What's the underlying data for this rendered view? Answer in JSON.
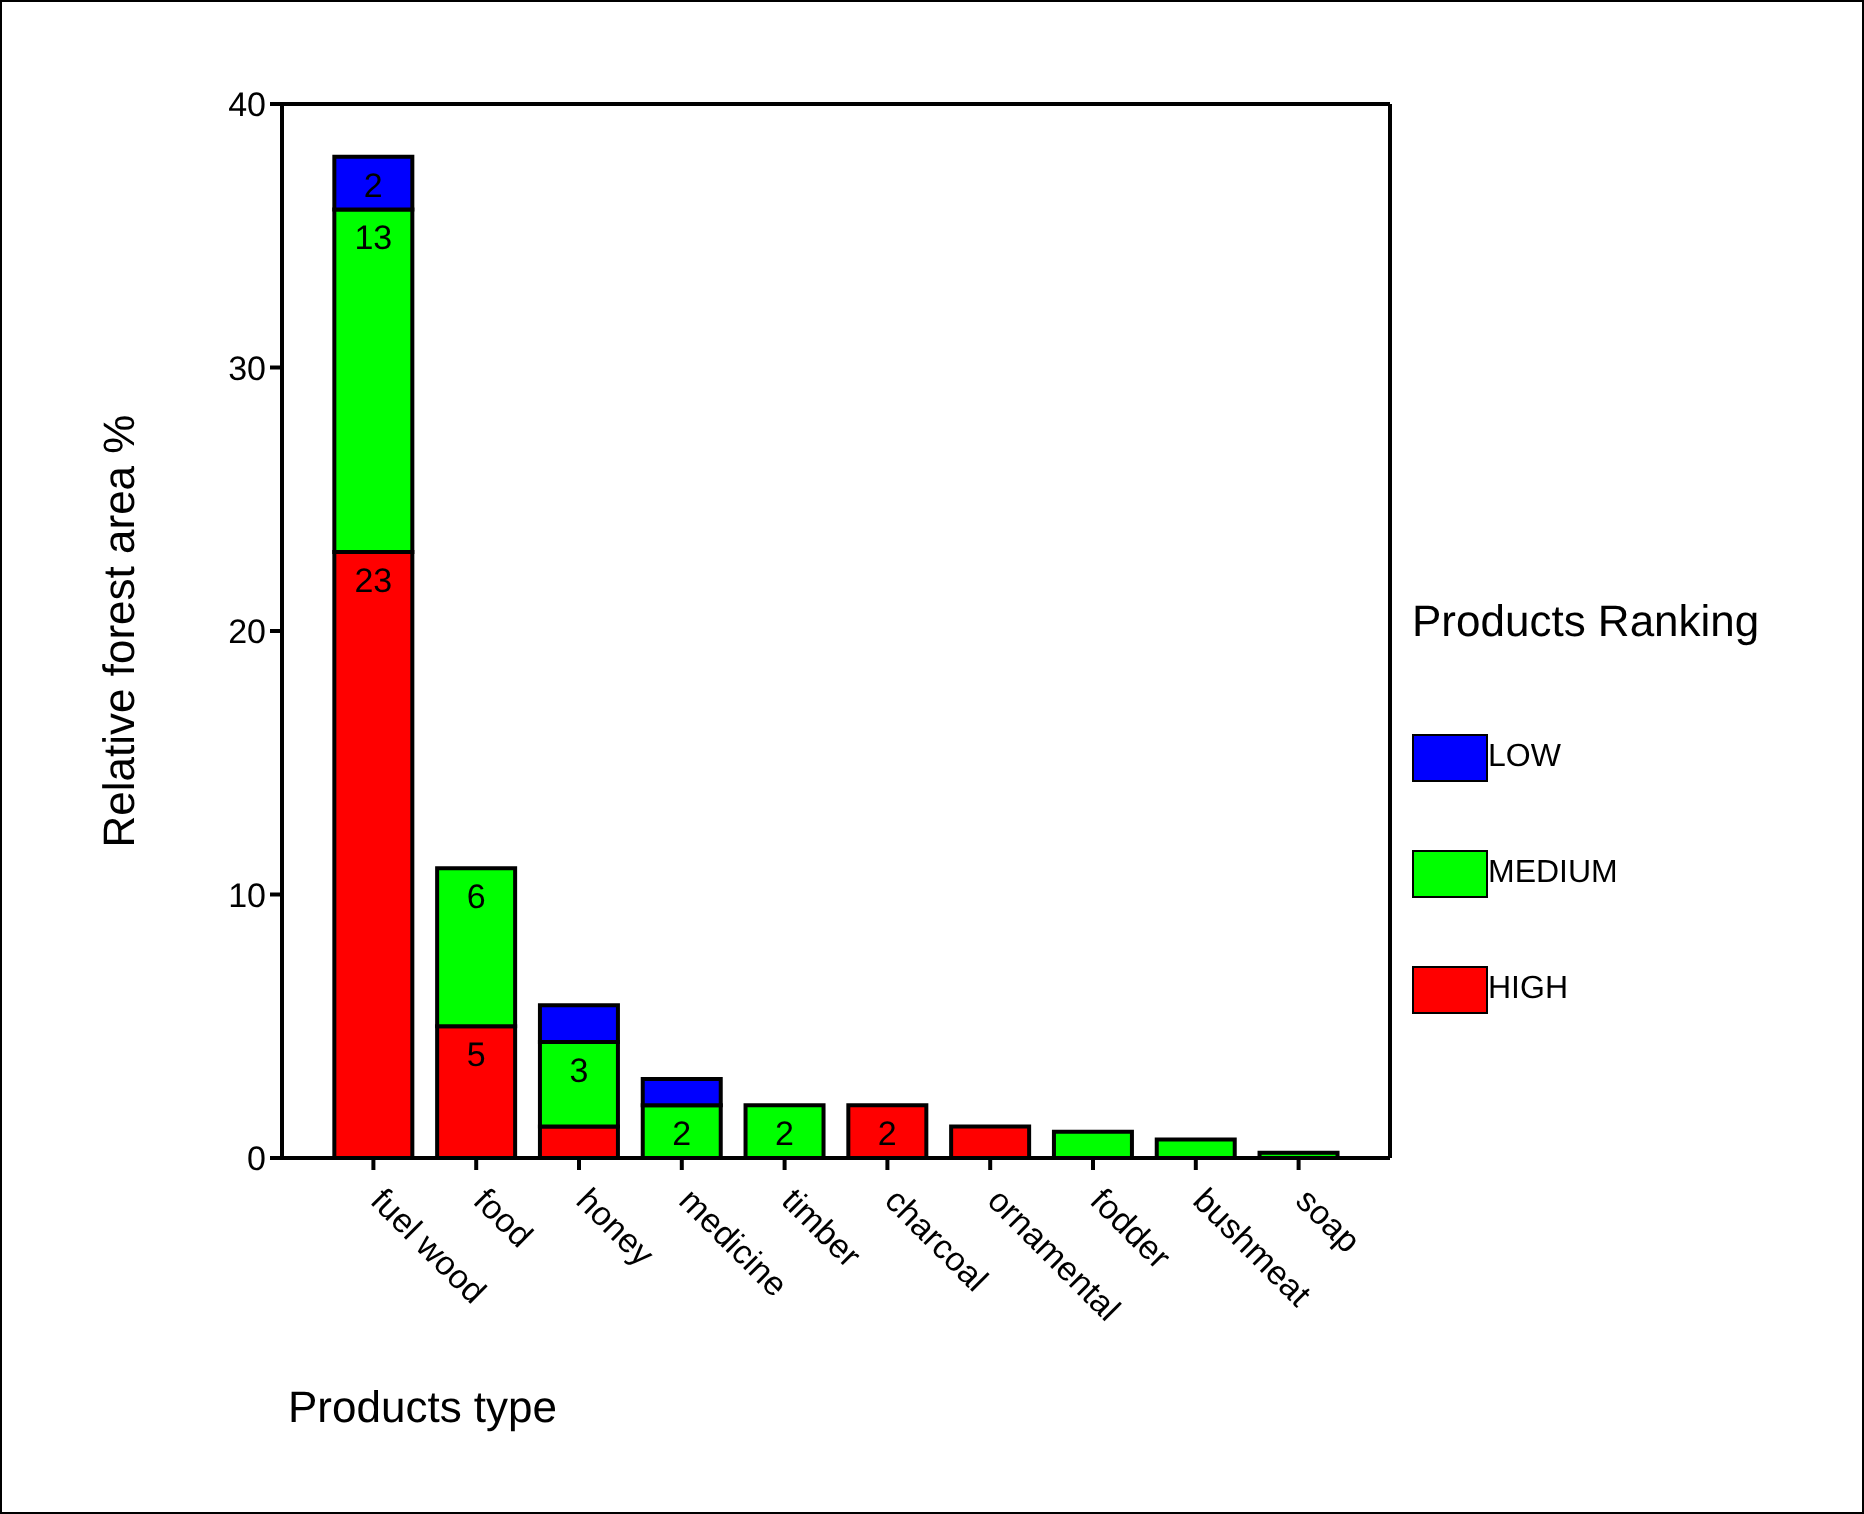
{
  "chart_data": {
    "type": "bar",
    "stacked": true,
    "xlabel": "Products type",
    "ylabel": "Relative forest area   %",
    "legend_title": "Products Ranking",
    "legend": "right",
    "categories": [
      "fuel wood",
      "food",
      "honey",
      "medicine",
      "timber",
      "charcoal",
      "ornamental",
      "fodder",
      "bushmeat",
      "soap"
    ],
    "ylim": [
      0,
      40
    ],
    "yticks": [
      0,
      10,
      20,
      30,
      40
    ],
    "series": [
      {
        "name": "HIGH",
        "color": "#ff0000",
        "values": [
          23,
          5,
          1.2,
          null,
          null,
          2,
          1.2,
          null,
          null,
          null
        ],
        "value_labels": [
          "23",
          "5",
          null,
          null,
          null,
          "2",
          null,
          null,
          null,
          null
        ]
      },
      {
        "name": "MEDIUM",
        "color": "#00ff00",
        "values": [
          13,
          6,
          3.2,
          2,
          2,
          null,
          null,
          1,
          0.7,
          0.2
        ],
        "value_labels": [
          "13",
          "6",
          "3",
          "2",
          "2",
          null,
          null,
          null,
          null,
          null
        ]
      },
      {
        "name": "LOW",
        "color": "#0000ff",
        "values": [
          2,
          null,
          1.4,
          1,
          null,
          null,
          null,
          null,
          null,
          null
        ],
        "value_labels": [
          "2",
          null,
          null,
          null,
          null,
          null,
          null,
          null,
          null,
          null
        ]
      }
    ]
  }
}
